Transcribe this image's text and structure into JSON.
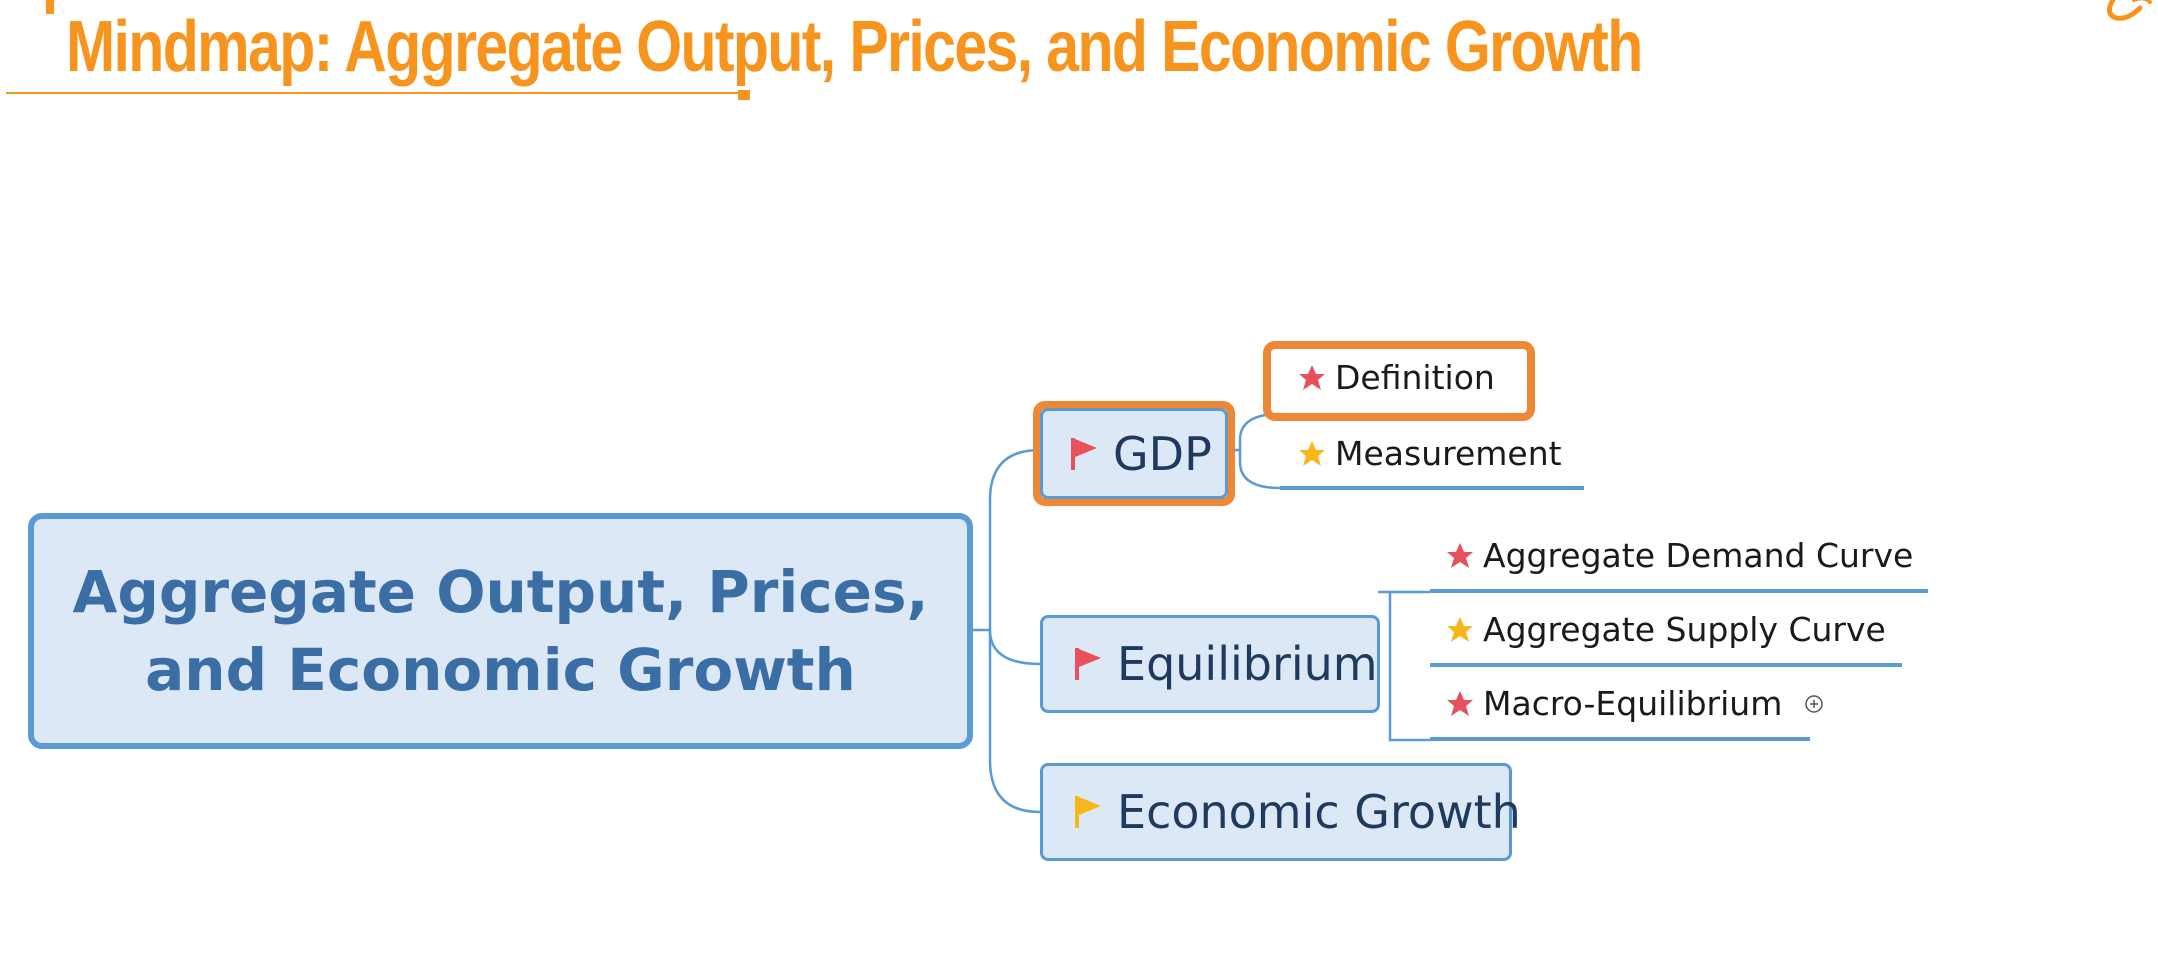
{
  "title": "Mindmap: Aggregate Output, Prices, and Economic Growth",
  "colors": {
    "accent": "#f7941d",
    "node_border": "#5b9bd5",
    "node_fill": "#dce8f5",
    "highlight": "#ed8936",
    "star_red": "#e8505b",
    "star_yellow": "#f6b61c"
  },
  "mindmap": {
    "root": {
      "line1": "Aggregate Output, Prices,",
      "line2": "and Economic Growth"
    },
    "branches": [
      {
        "label": "GDP",
        "flag": "red-flag-icon",
        "highlighted": true,
        "children": [
          {
            "label": "Definition",
            "star": "red-star-icon",
            "highlighted": true
          },
          {
            "label": "Measurement",
            "star": "yellow-star-icon"
          }
        ]
      },
      {
        "label": "Equilibrium",
        "flag": "red-flag-icon",
        "children": [
          {
            "label": "Aggregate Demand Curve",
            "star": "red-star-icon"
          },
          {
            "label": "Aggregate Supply Curve",
            "star": "yellow-star-icon"
          },
          {
            "label": "Macro-Equilibrium",
            "star": "red-star-icon",
            "collapsed": true
          }
        ]
      },
      {
        "label": "Economic Growth",
        "flag": "yellow-flag-icon",
        "children": []
      }
    ]
  }
}
